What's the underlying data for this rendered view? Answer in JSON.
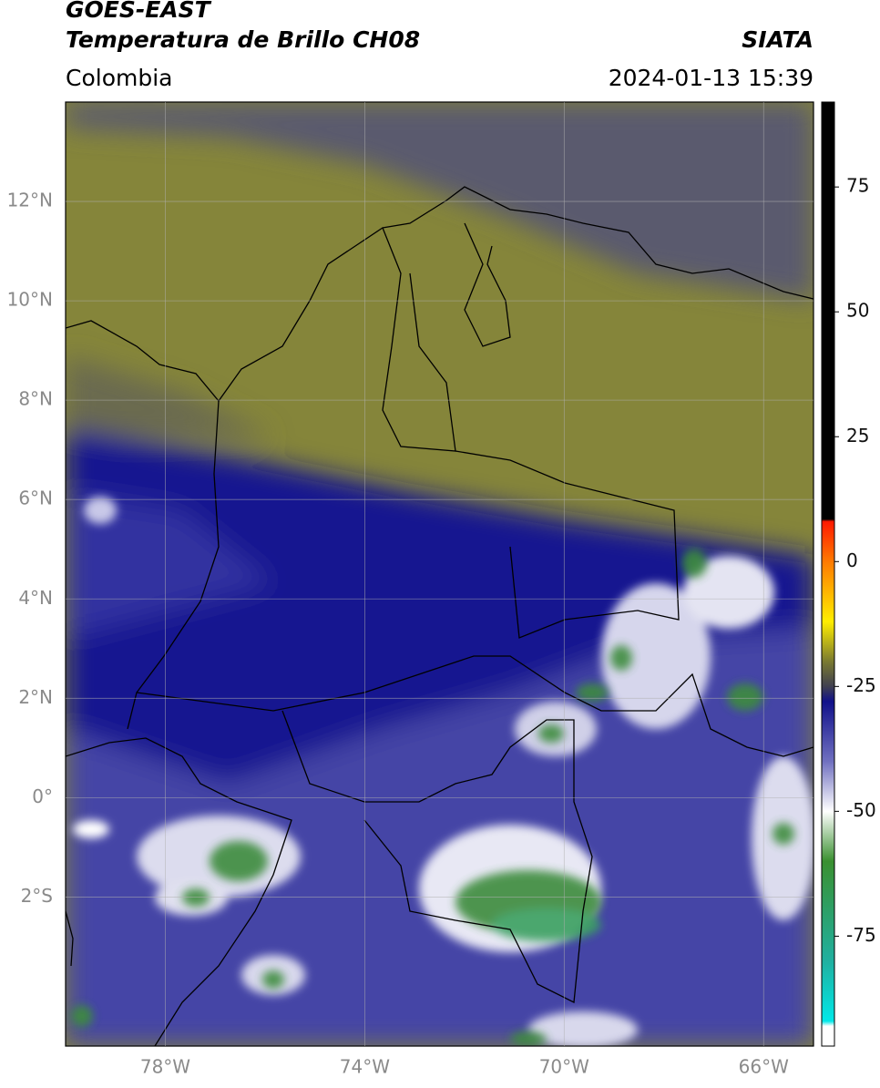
{
  "header": {
    "title": "GOES-EAST",
    "subtitle": "Temperatura de Brillo CH08",
    "source": "SIATA",
    "region": "Colombia",
    "datetime": "2024-01-13 15:39"
  },
  "map": {
    "lonlim": [
      -80,
      -65
    ],
    "latlim": [
      -5,
      14
    ],
    "lonticks": [
      {
        "value": -78,
        "label": "78°W"
      },
      {
        "value": -74,
        "label": "74°W"
      },
      {
        "value": -70,
        "label": "70°W"
      },
      {
        "value": -66,
        "label": "66°W"
      }
    ],
    "latticks": [
      {
        "value": 12,
        "label": "12°N"
      },
      {
        "value": 10,
        "label": "10°N"
      },
      {
        "value": 8,
        "label": "8°N"
      },
      {
        "value": 6,
        "label": "6°N"
      },
      {
        "value": 4,
        "label": "4°N"
      },
      {
        "value": 2,
        "label": "2°N"
      },
      {
        "value": 0,
        "label": "0°"
      },
      {
        "value": -2,
        "label": "2°S"
      }
    ],
    "grid": true
  },
  "colorbar": {
    "lim": [
      -97,
      92
    ],
    "ticks": [
      75,
      50,
      25,
      0,
      -25,
      -50,
      -75
    ],
    "colormap": [
      [
        92,
        "#000000"
      ],
      [
        8.5,
        "#000000"
      ],
      [
        8,
        "#ff1a00"
      ],
      [
        0,
        "#ff7a00"
      ],
      [
        -12,
        "#ffee00"
      ],
      [
        -20,
        "#7a7a30"
      ],
      [
        -25,
        "#404050"
      ],
      [
        -28,
        "#10108a"
      ],
      [
        -40,
        "#7070c0"
      ],
      [
        -50,
        "#ffffff"
      ],
      [
        -60,
        "#3a9030"
      ],
      [
        -80,
        "#20b0a0"
      ],
      [
        -92,
        "#00e8e8"
      ],
      [
        -93,
        "#ffffff"
      ],
      [
        -97,
        "#ffffff"
      ]
    ]
  }
}
